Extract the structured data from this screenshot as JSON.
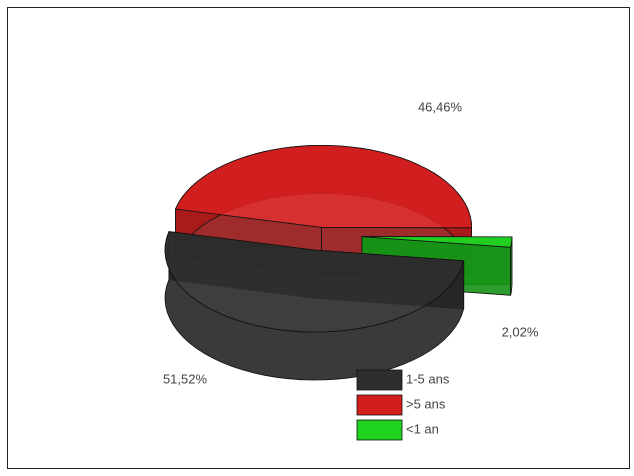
{
  "chart_data": {
    "type": "pie3d",
    "categories": [
      "1-5 ans",
      ">5 ans",
      "<1 an"
    ],
    "values": [
      51.52,
      46.46,
      2.02
    ],
    "value_labels": [
      "51,52%",
      "46,46%",
      "2,02%"
    ],
    "colors": [
      "#2e2e2e",
      "#d41e1e",
      "#1fd41f"
    ],
    "legend": "bottom"
  }
}
